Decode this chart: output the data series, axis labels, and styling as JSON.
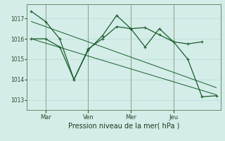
{
  "background_color": "#d4ede9",
  "grid_color": "#b8dbd6",
  "line_color": "#1a5c2a",
  "day_labels": [
    "Mar",
    "Ven",
    "Mer",
    "Jeu"
  ],
  "day_positions": [
    1,
    4,
    7,
    10
  ],
  "xlabel": "Pression niveau de la mer( hPa )",
  "ylim": [
    1012.5,
    1017.7
  ],
  "yticks": [
    1013,
    1014,
    1015,
    1016,
    1017
  ],
  "series1_x": [
    0,
    1,
    2,
    3,
    4,
    5,
    6,
    7,
    8,
    9,
    10,
    11,
    12
  ],
  "series1_y": [
    1017.35,
    1016.85,
    1016.0,
    1014.0,
    1015.45,
    1016.15,
    1017.15,
    1016.5,
    1016.55,
    1016.2,
    1015.85,
    1015.75,
    1015.85
  ],
  "series2_x": [
    0,
    1,
    2,
    3,
    4,
    5,
    6,
    7,
    8,
    9,
    10,
    11,
    12,
    13
  ],
  "series2_y": [
    1016.0,
    1016.0,
    1015.6,
    1014.0,
    1015.5,
    1016.0,
    1016.6,
    1016.5,
    1015.6,
    1016.5,
    1015.85,
    1015.0,
    1013.15,
    1013.2
  ],
  "trend1_x": [
    0,
    13
  ],
  "trend1_y": [
    1016.85,
    1013.6
  ],
  "trend2_x": [
    0,
    13
  ],
  "trend2_y": [
    1016.0,
    1013.25
  ],
  "xlim": [
    -0.3,
    13.3
  ],
  "figsize": [
    3.2,
    2.0
  ],
  "dpi": 100
}
